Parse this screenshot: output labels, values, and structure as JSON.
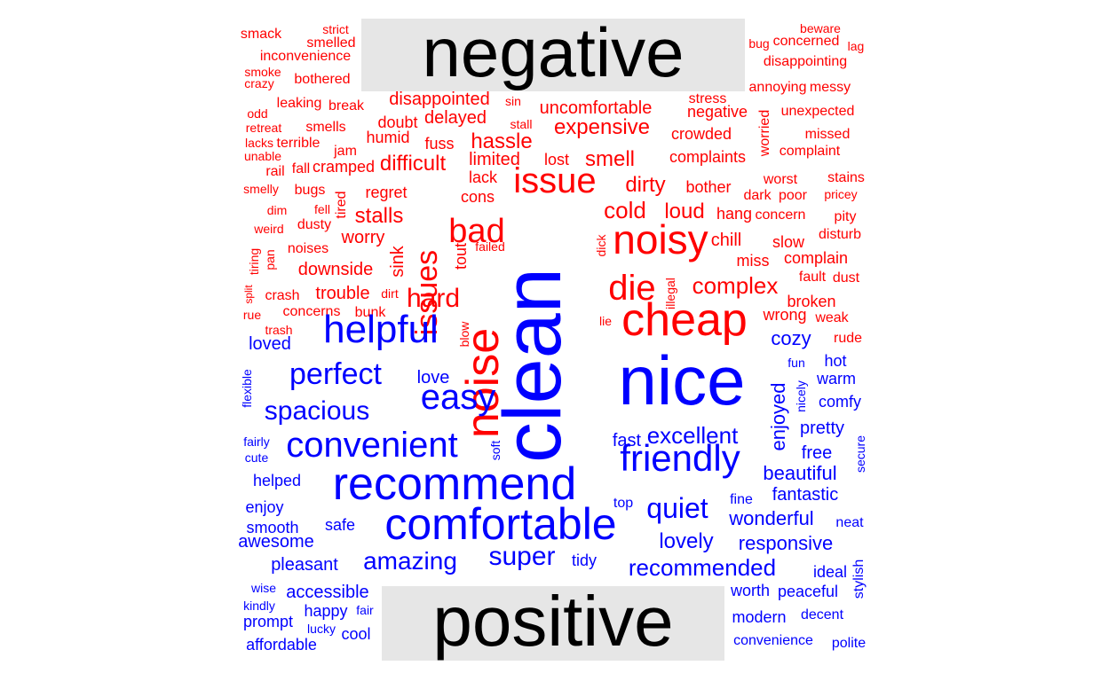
{
  "chart_data": {
    "type": "comparison_wordcloud",
    "groups": [
      {
        "name": "negative",
        "color": "#ff0000"
      },
      {
        "name": "positive",
        "color": "#0000ff"
      }
    ],
    "words": {
      "negative": [
        "noise",
        "cheap",
        "noisy",
        "issue",
        "die",
        "bad",
        "issues",
        "hard",
        "complex",
        "dirty",
        "smell",
        "hassle",
        "expensive",
        "uncomfortable",
        "cold",
        "loud",
        "difficult",
        "disappointed",
        "stalls",
        "worry",
        "downside",
        "trouble",
        "delayed",
        "doubt",
        "humid",
        "fuss",
        "limited",
        "lost",
        "complaints",
        "crowded",
        "bother",
        "chill",
        "complain",
        "miss",
        "broken",
        "hang",
        "concern",
        "slow",
        "wrong",
        "lack",
        "cons",
        "regret",
        "tired",
        "sink",
        "tout",
        "smack",
        "strict",
        "smelled",
        "inconvenience",
        "smoke",
        "crazy",
        "bothered",
        "leaking",
        "break",
        "odd",
        "retreat",
        "smells",
        "terrible",
        "jam",
        "lacks",
        "unable",
        "rail",
        "fall",
        "cramped",
        "smelly",
        "bugs",
        "dim",
        "fell",
        "dusty",
        "weird",
        "noises",
        "tiring",
        "pan",
        "split",
        "crash",
        "dirt",
        "rue",
        "concerns",
        "bunk",
        "trash",
        "sin",
        "stall",
        "failed",
        "dick",
        "illegal",
        "lie",
        "blow",
        "stress",
        "negative",
        "worried",
        "unexpected",
        "missed",
        "complaint",
        "worst",
        "dark",
        "poor",
        "stains",
        "pricey",
        "pity",
        "disturb",
        "fault",
        "dust",
        "weak",
        "rude",
        "beware",
        "bug",
        "concerned",
        "lag",
        "disappointing",
        "annoying",
        "messy"
      ],
      "positive": [
        "clean",
        "nice",
        "recommend",
        "comfortable",
        "helpful",
        "friendly",
        "convenient",
        "easy",
        "perfect",
        "spacious",
        "quiet",
        "super",
        "amazing",
        "excellent",
        "recommended",
        "lovely",
        "wonderful",
        "responsive",
        "enjoyed",
        "cozy",
        "beautiful",
        "fantastic",
        "love",
        "fast",
        "free",
        "pretty",
        "comfy",
        "warm",
        "hot",
        "loved",
        "flexible",
        "fairly",
        "cute",
        "helped",
        "enjoy",
        "smooth",
        "awesome",
        "safe",
        "pleasant",
        "accessible",
        "happy",
        "prompt",
        "affordable",
        "cool",
        "lucky",
        "kindly",
        "wise",
        "fair",
        "soft",
        "top",
        "tidy",
        "fine",
        "worth",
        "peaceful",
        "ideal",
        "stylish",
        "modern",
        "decent",
        "convenience",
        "polite",
        "neat",
        "secure",
        "nicely",
        "fun"
      ]
    }
  }
}
